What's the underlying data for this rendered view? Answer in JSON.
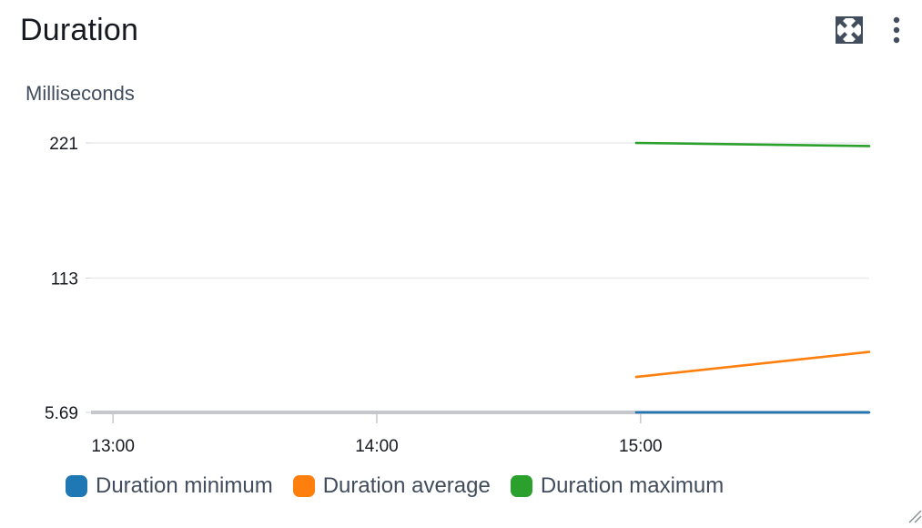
{
  "widget": {
    "title": "Duration",
    "expand_icon": "expand-arrows-icon",
    "menu_icon": "vertical-ellipsis-icon"
  },
  "chart_data": {
    "type": "line",
    "ylabel": "Milliseconds",
    "xlabel": "",
    "x_ticks": [
      "13:00",
      "14:00",
      "15:00"
    ],
    "x_range": [
      "12:55",
      "15:52"
    ],
    "y_ticks": [
      5.69,
      113,
      221
    ],
    "y_tick_labels": [
      "5.69",
      "113",
      "221"
    ],
    "ylim": [
      5.69,
      221
    ],
    "grid": true,
    "legend_position": "bottom",
    "series": [
      {
        "name": "Duration minimum",
        "color": "#1f77b4",
        "x": [
          "14:59",
          "15:52"
        ],
        "y": [
          5.69,
          5.69
        ]
      },
      {
        "name": "Duration average",
        "color": "#ff7f0e",
        "x": [
          "14:59",
          "15:52"
        ],
        "y": [
          34,
          54
        ]
      },
      {
        "name": "Duration maximum",
        "color": "#2ca02c",
        "x": [
          "14:59",
          "15:52"
        ],
        "y": [
          221,
          218.5
        ]
      }
    ]
  }
}
